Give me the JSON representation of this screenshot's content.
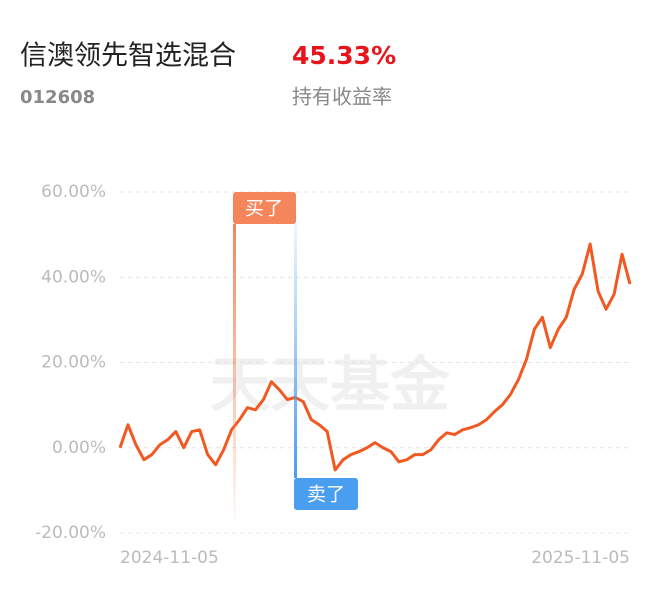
{
  "fund_name": "信澳领先智选混合",
  "fund_code": "012608",
  "return_value": "45.33%",
  "return_label": "持有收益率",
  "buy_label": "买了",
  "sell_label": "卖了",
  "watermark": "天天基金",
  "chart_data": {
    "type": "line",
    "categories": [
      "2024-11-05",
      null,
      null,
      null,
      null,
      null,
      null,
      null,
      null,
      null,
      null,
      null,
      null,
      null,
      null,
      null,
      null,
      null,
      null,
      null,
      null,
      null,
      null,
      null,
      null,
      null,
      null,
      null,
      null,
      null,
      null,
      null,
      null,
      null,
      null,
      null,
      null,
      null,
      null,
      null,
      null,
      null,
      null,
      null,
      null,
      null,
      null,
      null,
      null,
      null,
      null,
      null,
      null,
      null,
      null,
      null,
      null,
      null,
      null,
      null,
      null,
      null,
      null,
      null,
      "2025-11-05"
    ],
    "series": [
      {
        "color": "#f05a22",
        "values": [
          0,
          5.4,
          0.7,
          -2.8,
          -1.6,
          0.7,
          1.9,
          3.8,
          0,
          3.8,
          4.2,
          -1.6,
          -4,
          -0.5,
          4.2,
          6.6,
          9.4,
          8.9,
          11.3,
          15.5,
          13.6,
          11.3,
          11.8,
          10.8,
          6.6,
          5.4,
          3.8,
          -5.2,
          -2.8,
          -1.6,
          -0.9,
          0,
          1.2,
          0,
          -0.9,
          -3.3,
          -2.8,
          -1.6,
          -1.6,
          -0.5,
          1.9,
          3.5,
          3.1,
          4.2,
          4.7,
          5.4,
          6.6,
          8.5,
          10.1,
          12.5,
          16,
          20.7,
          27.8,
          30.6,
          23.5,
          27.8,
          30.6,
          37.2,
          40.7,
          47.8,
          36.7,
          32.5,
          36,
          45.4,
          38.4
        ]
      }
    ],
    "ylim": [
      -20,
      60
    ],
    "yticks": [
      {
        "value": -20,
        "label": "-20.00%"
      },
      {
        "value": 0,
        "label": "0.00%"
      },
      {
        "value": 20,
        "label": "20.00%"
      },
      {
        "value": 40,
        "label": "40.00%"
      },
      {
        "value": 60,
        "label": "60.00%"
      }
    ],
    "grid": true
  }
}
